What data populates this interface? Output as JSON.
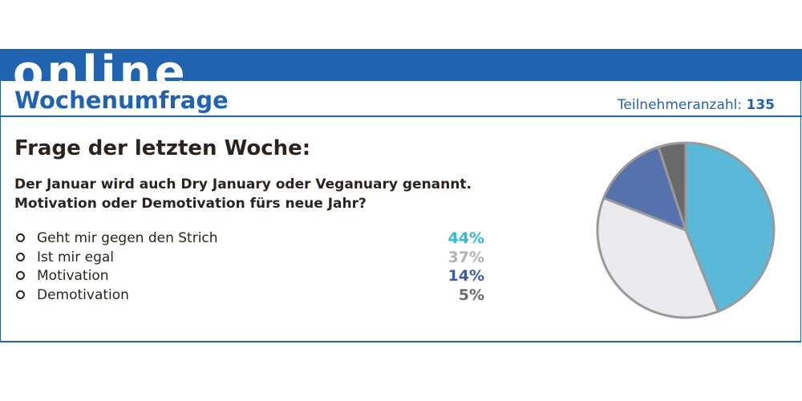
{
  "banner": {
    "word": "online"
  },
  "header": {
    "title": "Wochenumfrage",
    "participants_label": "Teilnehmeranzahl:",
    "participants_count": "135"
  },
  "question": {
    "heading": "Frage der letzten Woche:",
    "line1": "Der Januar wird auch Dry January oder Veganuary genannt.",
    "line2": "Motivation oder Demotivation fürs neue Jahr?"
  },
  "answers": [
    {
      "label": "Geht mir gegen den Strich",
      "percent": "44%",
      "color": "#35b7d7"
    },
    {
      "label": "Ist mir egal",
      "percent": "37%",
      "color": "#b3b3b3"
    },
    {
      "label": "Motivation",
      "percent": "14%",
      "color": "#3e5ba8"
    },
    {
      "label": "Demotivation",
      "percent": "5%",
      "color": "#6b6b6b"
    }
  ],
  "chart_data": {
    "type": "pie",
    "categories": [
      "Geht mir gegen den Strich",
      "Ist mir egal",
      "Motivation",
      "Demotivation"
    ],
    "values": [
      44,
      37,
      14,
      5
    ],
    "colors": [
      "#5ab9d9",
      "#ebebee",
      "#5572ad",
      "#6a6a6a"
    ],
    "outline_color": "#9a9a9a"
  },
  "colors": {
    "brand_blue": "#1f63b1",
    "text_dark": "#2a2420"
  }
}
